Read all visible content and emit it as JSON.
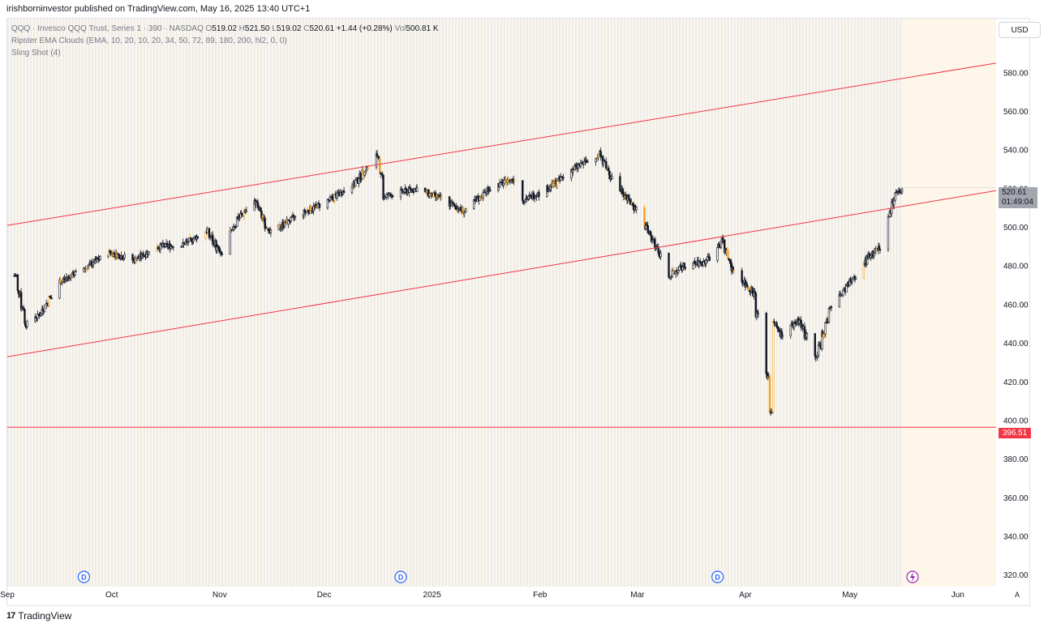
{
  "publish_line": "irishborninvestor published on TradingView.com, May 16, 2025 13:40 UTC+1",
  "legend": {
    "symbol": "QQQ · Invesco QQQ Trust, Series 1 · 390 · NASDAQ",
    "o_label": "O",
    "o_val": "519.02",
    "h_label": "H",
    "h_val": "521.50",
    "l_label": "L",
    "l_val": "519.02",
    "c_label": "C",
    "c_val": "520.61",
    "change": "+1.44 (+0.28%)",
    "vol_label": "Vol",
    "vol_val": "500.81 K",
    "indicator1": "Ripster EMA Clouds (EMA, 10, 20, 10, 20, 34, 50, 72, 89, 180, 200, hl2, 0, 0)",
    "indicator2": "Sling Shot (4)"
  },
  "currency_button": "USD",
  "last_price": "520.61",
  "countdown": "01:49:04",
  "horizontal_level": "396.51",
  "auto_label": "A",
  "footer": {
    "logo": "17",
    "brand": "TradingView"
  },
  "colors": {
    "trendline": "#f23645",
    "candle": "#131722",
    "highlight": "#f0a020",
    "bg_tint": "#fdf6e9",
    "stripes": "#dde6f1",
    "dividend": "#2962ff"
  },
  "chart_data": {
    "type": "candlestick",
    "title": "QQQ · Invesco QQQ Trust, Series 1 · 390 · NASDAQ",
    "ylim": [
      314,
      608
    ],
    "yticks": [
      320,
      340,
      360,
      380,
      400,
      420,
      440,
      460,
      480,
      500,
      520,
      540,
      560,
      580
    ],
    "ytick_labels": [
      "320.00",
      "340.00",
      "360.00",
      "380.00",
      "400.00",
      "420.00",
      "440.00",
      "460.00",
      "480.00",
      "500.00",
      "520.00",
      "540.00",
      "560.00",
      "580.00"
    ],
    "xlim": [
      "2024-09-01",
      "2025-06-12"
    ],
    "xticks": [
      {
        "date": "2024-09-01",
        "label": "Sep"
      },
      {
        "date": "2024-10-01",
        "label": "Oct"
      },
      {
        "date": "2024-11-01",
        "label": "Nov"
      },
      {
        "date": "2024-12-01",
        "label": "Dec"
      },
      {
        "date": "2025-01-01",
        "label": "2025"
      },
      {
        "date": "2025-02-01",
        "label": "Feb"
      },
      {
        "date": "2025-03-01",
        "label": "Mar"
      },
      {
        "date": "2025-04-01",
        "label": "Apr"
      },
      {
        "date": "2025-05-01",
        "label": "May"
      },
      {
        "date": "2025-06-01",
        "label": "Jun"
      }
    ],
    "trend_lines": [
      {
        "name": "upper-channel",
        "x1": "2024-09-01",
        "y1": 501,
        "x2": "2025-06-12",
        "y2": 585
      },
      {
        "name": "lower-channel",
        "x1": "2024-09-01",
        "y1": 433,
        "x2": "2025-06-12",
        "y2": 519
      },
      {
        "name": "support",
        "x1": "2024-09-01",
        "y1": 396.51,
        "x2": "2025-06-12",
        "y2": 396.51
      }
    ],
    "dividend_markers": [
      "2024-09-23",
      "2024-12-23",
      "2025-03-24"
    ],
    "price_path": [
      {
        "date": "2024-09-03",
        "close": 475
      },
      {
        "date": "2024-09-06",
        "close": 450
      },
      {
        "date": "2024-09-10",
        "close": 455
      },
      {
        "date": "2024-09-16",
        "close": 472
      },
      {
        "date": "2024-09-24",
        "close": 480
      },
      {
        "date": "2024-09-30",
        "close": 487
      },
      {
        "date": "2024-10-07",
        "close": 483
      },
      {
        "date": "2024-10-14",
        "close": 490
      },
      {
        "date": "2024-10-21",
        "close": 491
      },
      {
        "date": "2024-10-28",
        "close": 498
      },
      {
        "date": "2024-11-01",
        "close": 486
      },
      {
        "date": "2024-11-06",
        "close": 505
      },
      {
        "date": "2024-11-11",
        "close": 513
      },
      {
        "date": "2024-11-15",
        "close": 497
      },
      {
        "date": "2024-11-22",
        "close": 505
      },
      {
        "date": "2024-12-02",
        "close": 514
      },
      {
        "date": "2024-12-09",
        "close": 522
      },
      {
        "date": "2024-12-16",
        "close": 537
      },
      {
        "date": "2024-12-18",
        "close": 516
      },
      {
        "date": "2024-12-27",
        "close": 520
      },
      {
        "date": "2025-01-03",
        "close": 515
      },
      {
        "date": "2025-01-10",
        "close": 508
      },
      {
        "date": "2025-01-17",
        "close": 520
      },
      {
        "date": "2025-01-24",
        "close": 525
      },
      {
        "date": "2025-01-27",
        "close": 514
      },
      {
        "date": "2025-02-03",
        "close": 520
      },
      {
        "date": "2025-02-10",
        "close": 530
      },
      {
        "date": "2025-02-18",
        "close": 538
      },
      {
        "date": "2025-02-21",
        "close": 526
      },
      {
        "date": "2025-02-28",
        "close": 510
      },
      {
        "date": "2025-03-04",
        "close": 497
      },
      {
        "date": "2025-03-10",
        "close": 475
      },
      {
        "date": "2025-03-14",
        "close": 480
      },
      {
        "date": "2025-03-20",
        "close": 482
      },
      {
        "date": "2025-03-25",
        "close": 493
      },
      {
        "date": "2025-03-28",
        "close": 478
      },
      {
        "date": "2025-04-03",
        "close": 466
      },
      {
        "date": "2025-04-07",
        "close": 423
      },
      {
        "date": "2025-04-08",
        "close": 405
      },
      {
        "date": "2025-04-09",
        "close": 450
      },
      {
        "date": "2025-04-11",
        "close": 445
      },
      {
        "date": "2025-04-16",
        "close": 452
      },
      {
        "date": "2025-04-21",
        "close": 432
      },
      {
        "date": "2025-04-25",
        "close": 458
      },
      {
        "date": "2025-05-01",
        "close": 472
      },
      {
        "date": "2025-05-06",
        "close": 485
      },
      {
        "date": "2025-05-09",
        "close": 489
      },
      {
        "date": "2025-05-12",
        "close": 507
      },
      {
        "date": "2025-05-14",
        "close": 518
      },
      {
        "date": "2025-05-16",
        "close": 520.61
      }
    ]
  }
}
